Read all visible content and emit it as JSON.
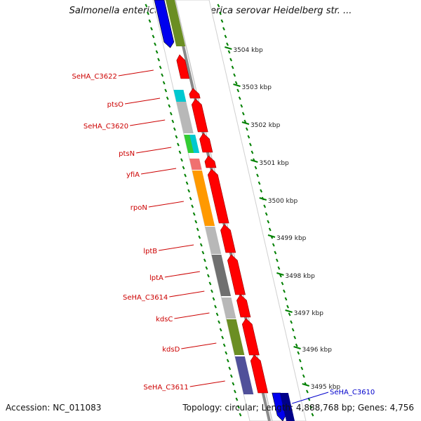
{
  "map": {
    "title": "Salmonella enterica subsp. enterica serovar Heidelberg str. ...",
    "accession_text": "Accession: NC_011083",
    "summary_text": "Topology: circular; Length: 4,888,768 bp; Genes: 4,756"
  },
  "ticks": [
    {
      "label": "3504 kbp"
    },
    {
      "label": "3503 kbp"
    },
    {
      "label": "3502 kbp"
    },
    {
      "label": "3501 kbp"
    },
    {
      "label": "3500 kbp"
    },
    {
      "label": "3499 kbp"
    },
    {
      "label": "3498 kbp"
    },
    {
      "label": "3497 kbp"
    },
    {
      "label": "3496 kbp"
    },
    {
      "label": "3495 kbp"
    }
  ],
  "genes": [
    {
      "label": "SeHA_C3622",
      "color": "#cc0000"
    },
    {
      "label": "ptsO",
      "color": "#cc0000"
    },
    {
      "label": "SeHA_C3620",
      "color": "#cc0000"
    },
    {
      "label": "ptsN",
      "color": "#cc0000"
    },
    {
      "label": "yfiA",
      "color": "#cc0000"
    },
    {
      "label": "rpoN",
      "color": "#cc0000"
    },
    {
      "label": "lptB",
      "color": "#cc0000"
    },
    {
      "label": "lptA",
      "color": "#cc0000"
    },
    {
      "label": "SeHA_C3614",
      "color": "#cc0000"
    },
    {
      "label": "kdsC",
      "color": "#cc0000"
    },
    {
      "label": "kdsD",
      "color": "#cc0000"
    },
    {
      "label": "SeHA_C3611",
      "color": "#cc0000"
    },
    {
      "label": "SeHA_C3610",
      "color": "#0000cc"
    }
  ],
  "colors": {
    "feature_red": "#ff0000",
    "cog_cyan": "#00c8d0",
    "cog_grey": "#b8b8b8",
    "cog_green": "#33cc33",
    "cog_pink": "#f07070",
    "cog_orange": "#ff9900",
    "cog_darkgrey": "#707070",
    "cog_olive": "#6b8e23",
    "cog_purple": "#50509a",
    "cog_blue": "#0000ee",
    "cog_navy": "#000088",
    "backbone": "#8a8a8a",
    "tick_green": "#008000"
  }
}
